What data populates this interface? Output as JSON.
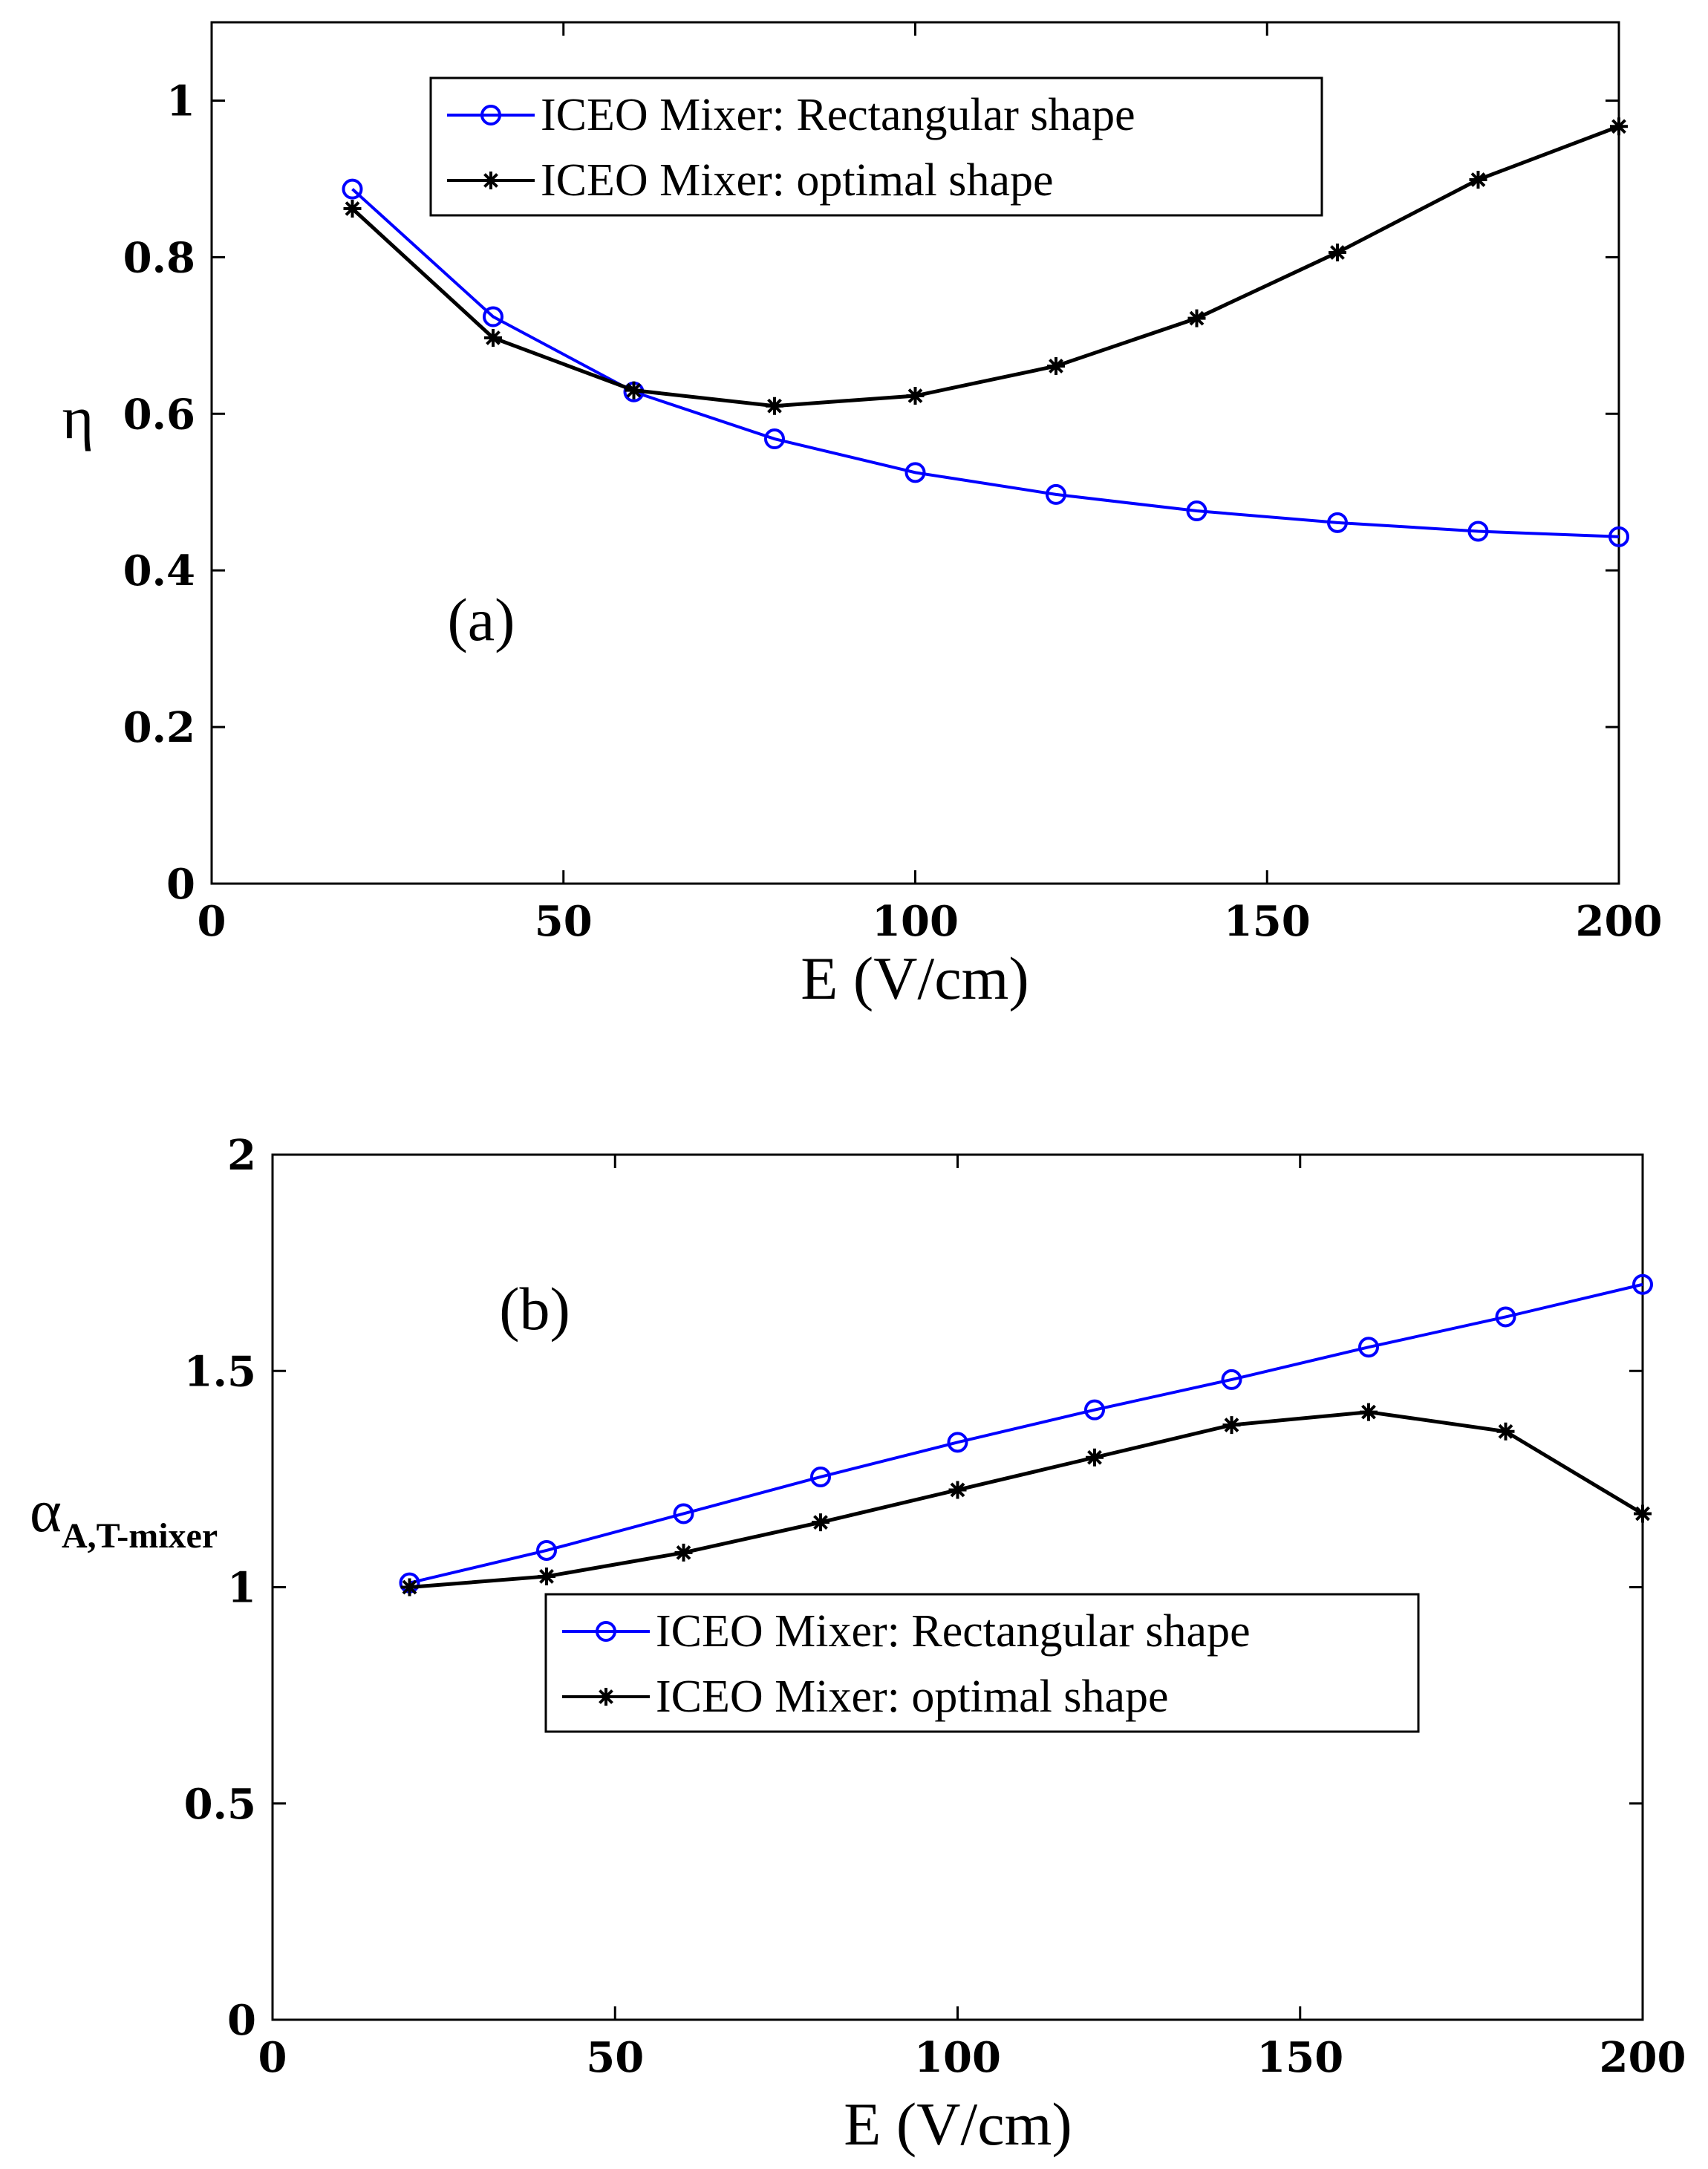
{
  "chart_data": [
    {
      "type": "line",
      "panel_label": "(a)",
      "xlabel": "E (V/cm)",
      "ylabel": "η",
      "ylabel_sub": "",
      "xlim": [
        0,
        200
      ],
      "ylim": [
        0,
        1.1
      ],
      "xticks": [
        0,
        50,
        100,
        150,
        200
      ],
      "yticks": [
        0,
        0.2,
        0.4,
        0.6,
        0.8,
        1
      ],
      "xtick_labels": [
        "0",
        "50",
        "100",
        "150",
        "200"
      ],
      "ytick_labels": [
        "0",
        "0.2",
        "0.4",
        "0.6",
        "0.8",
        "1"
      ],
      "legend_position": "top-center",
      "series": [
        {
          "name": "ICEO Mixer: Rectangular shape",
          "color": "#0000ff",
          "marker": "circle",
          "x": [
            20,
            40,
            60,
            80,
            100,
            120,
            140,
            160,
            180,
            200
          ],
          "values": [
            0.887,
            0.724,
            0.628,
            0.568,
            0.525,
            0.497,
            0.476,
            0.461,
            0.45,
            0.443
          ]
        },
        {
          "name": "ICEO Mixer: optimal shape",
          "color": "#000000",
          "marker": "star",
          "x": [
            20,
            40,
            60,
            80,
            100,
            120,
            140,
            160,
            180,
            200
          ],
          "values": [
            0.862,
            0.697,
            0.63,
            0.61,
            0.623,
            0.661,
            0.722,
            0.806,
            0.899,
            0.967
          ]
        }
      ]
    },
    {
      "type": "line",
      "panel_label": "(b)",
      "xlabel": "E (V/cm)",
      "ylabel": "α",
      "ylabel_sub": "A,T-mixer",
      "xlim": [
        0,
        200
      ],
      "ylim": [
        0,
        2
      ],
      "xticks": [
        0,
        50,
        100,
        150,
        200
      ],
      "yticks": [
        0,
        0.5,
        1,
        1.5,
        2
      ],
      "xtick_labels": [
        "0",
        "50",
        "100",
        "150",
        "200"
      ],
      "ytick_labels": [
        "0",
        "0.5",
        "1",
        "1.5",
        "2"
      ],
      "legend_position": "center",
      "series": [
        {
          "name": "ICEO Mixer: Rectangular shape",
          "color": "#0000ff",
          "marker": "circle",
          "x": [
            20,
            40,
            60,
            80,
            100,
            120,
            140,
            160,
            180,
            200
          ],
          "values": [
            1.01,
            1.085,
            1.17,
            1.255,
            1.335,
            1.41,
            1.48,
            1.555,
            1.625,
            1.7
          ]
        },
        {
          "name": "ICEO Mixer: optimal shape",
          "color": "#000000",
          "marker": "star",
          "x": [
            20,
            40,
            60,
            80,
            100,
            120,
            140,
            160,
            180,
            200
          ],
          "values": [
            1.0,
            1.025,
            1.08,
            1.15,
            1.225,
            1.3,
            1.375,
            1.405,
            1.36,
            1.17
          ]
        }
      ]
    }
  ]
}
